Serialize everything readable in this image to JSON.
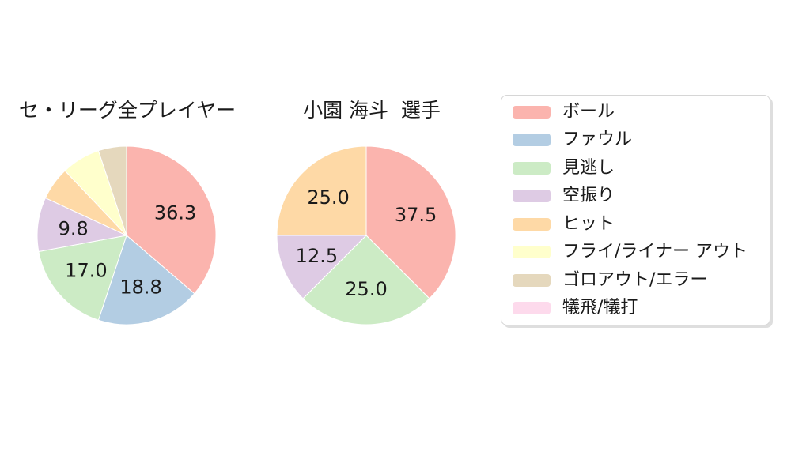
{
  "page": {
    "background": "#ffffff",
    "text_color": "#1a1a1a"
  },
  "legend": {
    "position": "right",
    "border_color": "#d6d6d6",
    "items": [
      {
        "label": "ボール",
        "color": "#fbb4ae"
      },
      {
        "label": "ファウル",
        "color": "#b3cde3"
      },
      {
        "label": "見逃し",
        "color": "#ccebc5"
      },
      {
        "label": "空振り",
        "color": "#decbe4"
      },
      {
        "label": "ヒット",
        "color": "#fed9a6"
      },
      {
        "label": "フライ/ライナー アウト",
        "color": "#ffffcc"
      },
      {
        "label": "ゴロアウト/エラー",
        "color": "#e5d8bd"
      },
      {
        "label": "犠飛/犠打",
        "color": "#fddaec"
      }
    ]
  },
  "chart_data": [
    {
      "type": "pie",
      "title": "セ・リーグ全プレイヤー",
      "start_angle": "12-oclock",
      "direction": "clockwise",
      "unit": "percent",
      "slices": [
        {
          "name": "ボール",
          "value": 36.3,
          "label": "36.3",
          "color": "#fbb4ae"
        },
        {
          "name": "ファウル",
          "value": 18.8,
          "label": "18.8",
          "color": "#b3cde3"
        },
        {
          "name": "見逃し",
          "value": 17.0,
          "label": "17.0",
          "color": "#ccebc5"
        },
        {
          "name": "空振り",
          "value": 9.8,
          "label": "9.8",
          "color": "#decbe4"
        },
        {
          "name": "ヒット",
          "value": 6.0,
          "label": "",
          "color": "#fed9a6"
        },
        {
          "name": "フライ/ライナー アウト",
          "value": 7.0,
          "label": "",
          "color": "#ffffcc"
        },
        {
          "name": "ゴロアウト/エラー",
          "value": 5.1,
          "label": "",
          "color": "#e5d8bd"
        },
        {
          "name": "犠飛/犠打",
          "value": 0.0,
          "label": "",
          "color": "#fddaec"
        }
      ]
    },
    {
      "type": "pie",
      "title": "小園 海斗  選手",
      "start_angle": "12-oclock",
      "direction": "clockwise",
      "unit": "percent",
      "slices": [
        {
          "name": "ボール",
          "value": 37.5,
          "label": "37.5",
          "color": "#fbb4ae"
        },
        {
          "name": "見逃し",
          "value": 25.0,
          "label": "25.0",
          "color": "#ccebc5"
        },
        {
          "name": "空振り",
          "value": 12.5,
          "label": "12.5",
          "color": "#decbe4"
        },
        {
          "name": "ヒット",
          "value": 25.0,
          "label": "25.0",
          "color": "#fed9a6"
        }
      ]
    }
  ]
}
